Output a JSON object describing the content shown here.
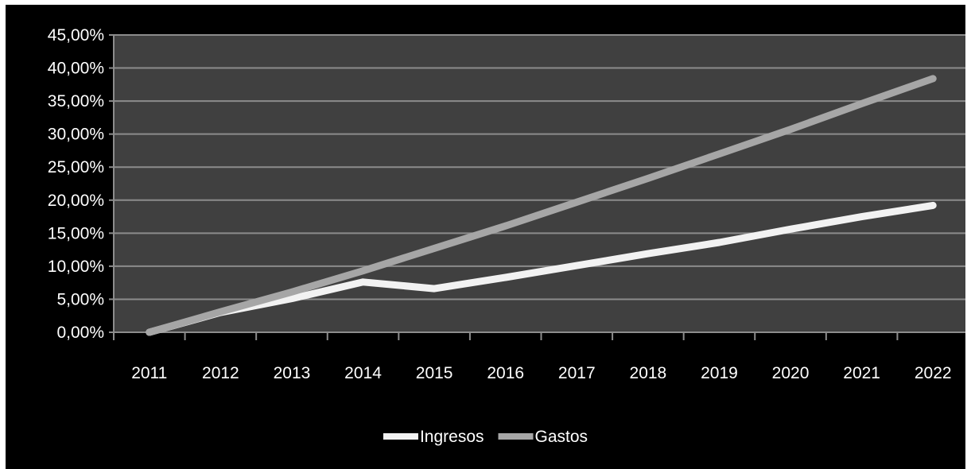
{
  "chart_data": {
    "type": "line",
    "title": "",
    "xlabel": "",
    "ylabel": "",
    "categories": [
      "2011",
      "2012",
      "2013",
      "2014",
      "2015",
      "2016",
      "2017",
      "2018",
      "2019",
      "2020",
      "2021",
      "2022"
    ],
    "y_tick_labels": [
      "0,00%",
      "5,00%",
      "10,00%",
      "15,00%",
      "20,00%",
      "25,00%",
      "30,00%",
      "35,00%",
      "40,00%",
      "45,00%"
    ],
    "ylim": [
      0,
      45
    ],
    "y_unit": "%",
    "grid": true,
    "legend_position": "bottom",
    "plot_background": "#404040",
    "series": [
      {
        "name": "Ingresos",
        "color": "#f2f2f2",
        "values": [
          0.0,
          3.0,
          5.1,
          7.6,
          6.6,
          8.3,
          10.1,
          11.9,
          13.6,
          15.6,
          17.5,
          19.2
        ]
      },
      {
        "name": "Gastos",
        "color": "#a6a6a6",
        "values": [
          0.0,
          3.1,
          6.1,
          9.3,
          12.7,
          16.1,
          19.7,
          23.3,
          27.0,
          30.7,
          34.6,
          38.4
        ]
      }
    ]
  }
}
